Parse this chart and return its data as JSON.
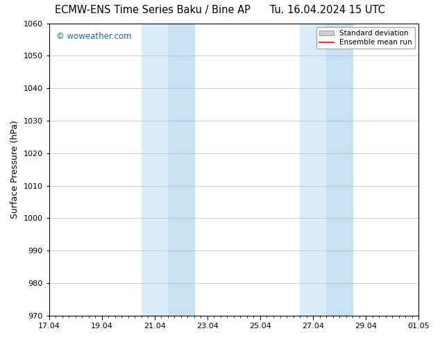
{
  "title_left": "ECMW-ENS Time Series Baku / Bine AP",
  "title_right": "Tu. 16.04.2024 15 UTC",
  "ylabel": "Surface Pressure (hPa)",
  "ylim": [
    970,
    1060
  ],
  "yticks": [
    970,
    980,
    990,
    1000,
    1010,
    1020,
    1030,
    1040,
    1050,
    1060
  ],
  "xtick_labels": [
    "17.04",
    "19.04",
    "21.04",
    "23.04",
    "25.04",
    "27.04",
    "29.04",
    "01.05"
  ],
  "x_positions": [
    0,
    2,
    4,
    6,
    8,
    10,
    12,
    14
  ],
  "x_min": 0,
  "x_max": 14,
  "shaded_band1_light": [
    3.5,
    4.5
  ],
  "shaded_band1_dark": [
    4.5,
    5.5
  ],
  "shaded_band2_light": [
    9.5,
    10.5
  ],
  "shaded_band2_dark": [
    10.5,
    11.5
  ],
  "shade_color_light": "#daedf8",
  "shade_color_dark": "#c8e2f4",
  "bg_color": "#ffffff",
  "grid_color": "#bbbbbb",
  "watermark_text": "© woweather.com",
  "watermark_color": "#1a6bbf",
  "legend_std_color": "#d0d0d0",
  "legend_mean_color": "#ff0000",
  "title_fontsize": 10.5,
  "axis_fontsize": 9,
  "tick_fontsize": 8,
  "legend_fontsize": 7.5
}
